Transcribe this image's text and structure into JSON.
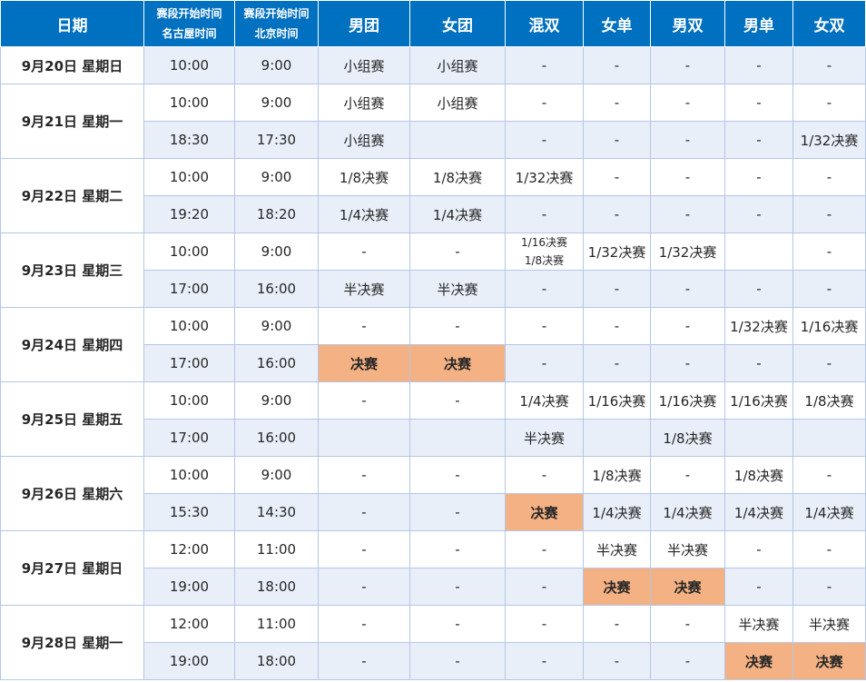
{
  "headers": {
    "date": "日期",
    "nagoya_line1": "赛段开始时间",
    "nagoya_line2": "名古屋时间",
    "beijing_line1": "赛段开始时间",
    "beijing_line2": "北京时间",
    "events": [
      "男团",
      "女团",
      "混双",
      "女单",
      "男双",
      "男单",
      "女双"
    ]
  },
  "rows": [
    {
      "date": "9月20日 星期日",
      "nagoya": "10:00",
      "beijing": "9:00",
      "cells": [
        "小组赛",
        "小组赛",
        "-",
        "-",
        "-",
        "-",
        "-"
      ]
    },
    {
      "date": "9月21日 星期一",
      "nagoya": "10:00",
      "beijing": "9:00",
      "cells": [
        "小组赛",
        "小组赛",
        "-",
        "-",
        "-",
        "-",
        "-"
      ]
    },
    {
      "nagoya": "18:30",
      "beijing": "17:30",
      "cells": [
        "小组赛",
        "",
        "-",
        "-",
        "-",
        "-",
        "1/32决赛"
      ]
    },
    {
      "date": "9月22日 星期二",
      "nagoya": "10:00",
      "beijing": "9:00",
      "cells": [
        "1/8决赛",
        "1/8决赛",
        "1/32决赛",
        "-",
        "-",
        "-",
        "-"
      ]
    },
    {
      "nagoya": "19:20",
      "beijing": "18:20",
      "cells": [
        "1/4决赛",
        "1/4决赛",
        "-",
        "-",
        "-",
        "-",
        "-"
      ]
    },
    {
      "date": "9月23日 星期三",
      "nagoya": "10:00",
      "beijing": "9:00",
      "cells": [
        "-",
        "-",
        "1/16决赛",
        "1/32决赛",
        "1/32决赛",
        "",
        "-"
      ],
      "mixed_extra": "1/8决赛"
    },
    {
      "nagoya": "17:00",
      "beijing": "16:00",
      "cells": [
        "半决赛",
        "半决赛",
        "-",
        "-",
        "-",
        "-",
        "-"
      ]
    },
    {
      "date": "9月24日 星期四",
      "nagoya": "10:00",
      "beijing": "9:00",
      "cells": [
        "-",
        "-",
        "-",
        "-",
        "-",
        "1/32决赛",
        "1/16决赛"
      ]
    },
    {
      "nagoya": "17:00",
      "beijing": "16:00",
      "cells": [
        "决赛",
        "决赛",
        "-",
        "-",
        "-",
        "-",
        "-"
      ]
    },
    {
      "date": "9月25日 星期五",
      "nagoya": "10:00",
      "beijing": "9:00",
      "cells": [
        "-",
        "-",
        "1/4决赛",
        "1/16决赛",
        "1/16决赛",
        "1/16决赛",
        "1/8决赛"
      ]
    },
    {
      "nagoya": "17:00",
      "beijing": "16:00",
      "cells": [
        "",
        "",
        "半决赛",
        "",
        "1/8决赛",
        "",
        ""
      ]
    },
    {
      "date": "9月26日 星期六",
      "nagoya": "10:00",
      "beijing": "9:00",
      "cells": [
        "-",
        "-",
        "-",
        "1/8决赛",
        "-",
        "1/8决赛",
        "-"
      ]
    },
    {
      "nagoya": "15:30",
      "beijing": "14:30",
      "cells": [
        "-",
        "-",
        "决赛",
        "1/4决赛",
        "1/4决赛",
        "1/4决赛",
        "1/4决赛"
      ]
    },
    {
      "date": "9月27日 星期日",
      "nagoya": "12:00",
      "beijing": "11:00",
      "cells": [
        "-",
        "-",
        "-",
        "半决赛",
        "半决赛",
        "-",
        "-"
      ]
    },
    {
      "nagoya": "19:00",
      "beijing": "18:00",
      "cells": [
        "-",
        "-",
        "-",
        "决赛",
        "决赛",
        "-",
        "-"
      ]
    },
    {
      "date": "9月28日 星期一",
      "nagoya": "12:00",
      "beijing": "11:00",
      "cells": [
        "-",
        "-",
        "-",
        "-",
        "-",
        "半决赛",
        "半决赛"
      ]
    },
    {
      "nagoya": "19:00",
      "beijing": "18:00",
      "cells": [
        "-",
        "-",
        "-",
        "-",
        "-",
        "决赛",
        "决赛"
      ]
    }
  ],
  "colors": {
    "header_bg": "#0070c0",
    "alt_row": "#e9eff8",
    "final_highlight": "#f4b183",
    "border": "#b4c6e7"
  }
}
